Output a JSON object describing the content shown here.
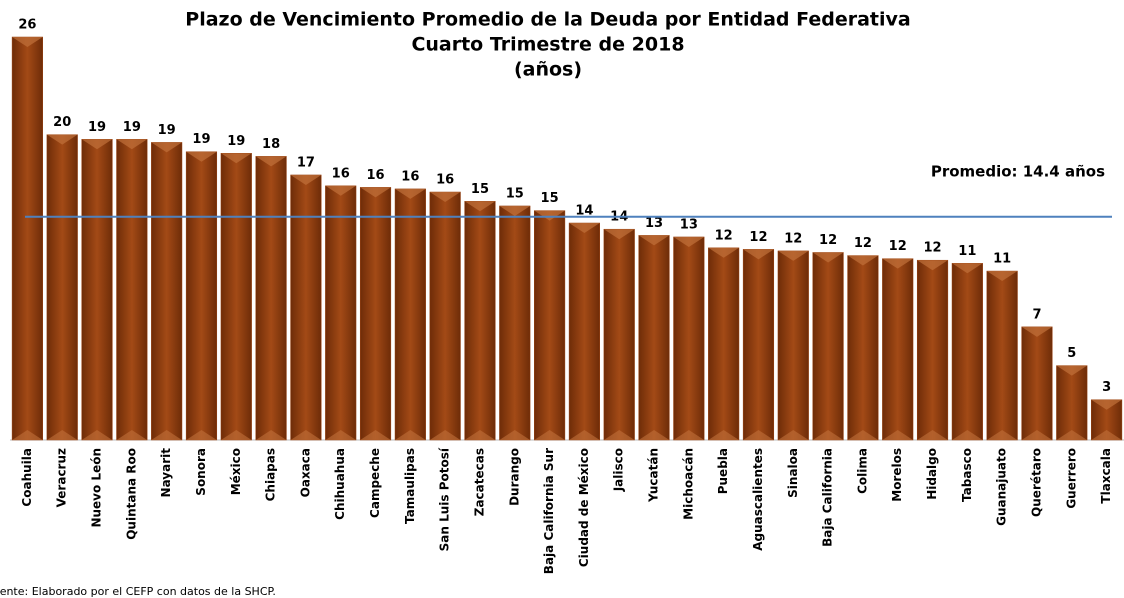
{
  "chart_data": {
    "type": "bar",
    "title": [
      "Plazo de Vencimiento Promedio de la Deuda por Entidad Federativa",
      "Cuarto Trimestre de 2018",
      "(años)"
    ],
    "categories": [
      "Coahuila",
      "Veracruz",
      "Nuevo León",
      "Quintana Roo",
      "Nayarit",
      "Sonora",
      "México",
      "Chiapas",
      "Oaxaca",
      "Chihuahua",
      "Campeche",
      "Tamaulipas",
      "San Luis Potosí",
      "Zacatecas",
      "Durango",
      "Baja California Sur",
      "Ciudad de México",
      "Jalisco",
      "Yucatán",
      "Michoacán",
      "Puebla",
      "Aguascalientes",
      "Sinaloa",
      "Baja California",
      "Colima",
      "Morelos",
      "Hidalgo",
      "Tabasco",
      "Guanajuato",
      "Querétaro",
      "Guerrero",
      "Tlaxcala"
    ],
    "values": [
      26.0,
      19.7,
      19.4,
      19.4,
      19.2,
      18.6,
      18.5,
      18.3,
      17.1,
      16.4,
      16.3,
      16.2,
      16.0,
      15.4,
      15.1,
      14.8,
      14.0,
      13.6,
      13.2,
      13.1,
      12.4,
      12.3,
      12.2,
      12.1,
      11.9,
      11.7,
      11.6,
      11.4,
      10.9,
      7.3,
      4.8,
      2.6
    ],
    "value_labels": [
      "26",
      "20",
      "19",
      "19",
      "19",
      "19",
      "19",
      "18",
      "17",
      "16",
      "16",
      "16",
      "16",
      "15",
      "15",
      "15",
      "14",
      "14",
      "13",
      "13",
      "12",
      "12",
      "12",
      "12",
      "12",
      "12",
      "12",
      "11",
      "11",
      "7",
      "5",
      "3"
    ],
    "color": "#97400f",
    "average": {
      "value": 14.4,
      "label": "Promedio:  14.4 años",
      "color": "#4f81bd"
    },
    "source": "Fuente: Elaborado por el CEFP con datos de la SHCP."
  }
}
